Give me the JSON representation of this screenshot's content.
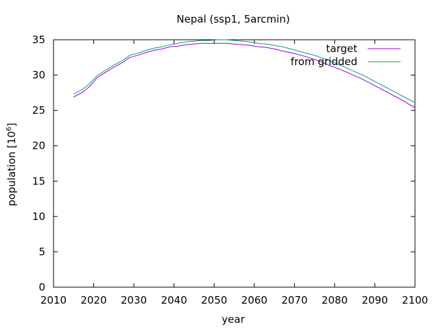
{
  "chart_data": {
    "type": "line",
    "title": "Nepal (ssp1, 5arcmin)",
    "xlabel": "year",
    "ylabel_main": "population [10",
    "ylabel_sup": "6",
    "ylabel_close": "]",
    "xlim": [
      2010,
      2100
    ],
    "ylim": [
      0,
      35
    ],
    "xticks": [
      2010,
      2020,
      2030,
      2040,
      2050,
      2060,
      2070,
      2080,
      2090,
      2100
    ],
    "yticks": [
      0,
      5,
      10,
      15,
      20,
      25,
      30,
      35
    ],
    "grid": false,
    "legend_position": "top-right",
    "series": [
      {
        "name": "target",
        "color": "#9400d3",
        "x": [
          2015,
          2017,
          2019,
          2021,
          2023,
          2025,
          2027,
          2029,
          2031,
          2033,
          2035,
          2037,
          2039,
          2041,
          2043,
          2045,
          2047,
          2049,
          2051,
          2053,
          2055,
          2057,
          2059,
          2061,
          2063,
          2065,
          2067,
          2069,
          2071,
          2073,
          2075,
          2077,
          2079,
          2081,
          2083,
          2085,
          2087,
          2089,
          2091,
          2093,
          2095,
          2097,
          2099,
          2100
        ],
        "y": [
          26.9,
          27.5,
          28.4,
          29.7,
          30.4,
          31.1,
          31.7,
          32.5,
          32.8,
          33.2,
          33.5,
          33.7,
          34.0,
          34.1,
          34.3,
          34.4,
          34.5,
          34.5,
          34.5,
          34.5,
          34.4,
          34.3,
          34.2,
          34.0,
          33.9,
          33.7,
          33.4,
          33.2,
          32.9,
          32.6,
          32.2,
          31.8,
          31.3,
          30.9,
          30.4,
          29.9,
          29.4,
          28.8,
          28.2,
          27.6,
          27.0,
          26.4,
          25.7,
          25.4
        ]
      },
      {
        "name": "from gridded",
        "color": "#009e73",
        "x": [
          2015,
          2017,
          2019,
          2021,
          2023,
          2025,
          2027,
          2029,
          2031,
          2033,
          2035,
          2037,
          2039,
          2041,
          2043,
          2045,
          2047,
          2049,
          2051,
          2053,
          2055,
          2057,
          2059,
          2061,
          2063,
          2065,
          2067,
          2069,
          2071,
          2073,
          2075,
          2077,
          2079,
          2081,
          2083,
          2085,
          2087,
          2089,
          2091,
          2093,
          2095,
          2097,
          2099,
          2100
        ],
        "y": [
          27.3,
          27.9,
          28.8,
          30.0,
          30.7,
          31.4,
          32.0,
          32.8,
          33.1,
          33.5,
          33.8,
          34.0,
          34.3,
          34.5,
          34.7,
          34.8,
          34.9,
          34.9,
          35.0,
          35.0,
          34.9,
          34.8,
          34.7,
          34.5,
          34.4,
          34.2,
          34.0,
          33.7,
          33.4,
          33.1,
          32.8,
          32.4,
          32.0,
          31.5,
          31.0,
          30.5,
          30.0,
          29.4,
          28.8,
          28.2,
          27.6,
          27.0,
          26.4,
          26.1
        ]
      }
    ]
  }
}
